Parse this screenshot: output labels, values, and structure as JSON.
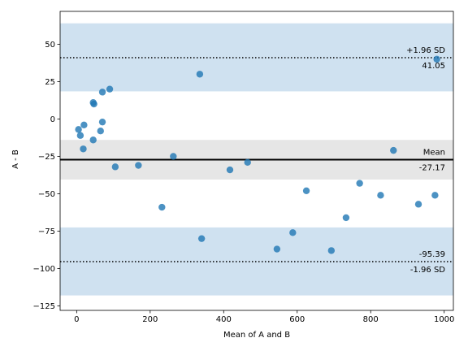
{
  "chart_data": {
    "type": "scatter",
    "title": "",
    "xlabel": "Mean of A and B",
    "ylabel": "A - B",
    "xlim": [
      -45,
      1025
    ],
    "ylim": [
      -128,
      72
    ],
    "xticks": [
      0,
      200,
      400,
      600,
      800,
      1000
    ],
    "yticks": [
      -125,
      -100,
      -75,
      -50,
      -25,
      0,
      25,
      50
    ],
    "grid": false,
    "colors": {
      "points": "#1f77b4",
      "band": "#cfe1f0",
      "band_mean": "#e6e6e6",
      "line": "#000000"
    },
    "bands": [
      {
        "name": "upper-ci-band",
        "y0": 18.5,
        "y1": 64,
        "color": "#cfe1f0"
      },
      {
        "name": "mean-ci-band",
        "y0": -40.5,
        "y1": -14,
        "color": "#e6e6e6"
      },
      {
        "name": "lower-ci-band",
        "y0": -118,
        "y1": -72.5,
        "color": "#cfe1f0"
      }
    ],
    "reference_lines": [
      {
        "name": "upper-loa-line",
        "y": 41.05,
        "style": "dotted",
        "label_top": "+1.96 SD",
        "label_bottom": "41.05"
      },
      {
        "name": "mean-line",
        "y": -27.17,
        "style": "solid",
        "label_top": "Mean",
        "label_bottom": "-27.17"
      },
      {
        "name": "lower-loa-line",
        "y": -95.39,
        "style": "dotted",
        "label_top": "-95.39",
        "label_bottom": "-1.96 SD"
      }
    ],
    "points": [
      {
        "x": 5,
        "y": -7
      },
      {
        "x": 10,
        "y": -11
      },
      {
        "x": 20,
        "y": -4
      },
      {
        "x": 18,
        "y": -20
      },
      {
        "x": 45,
        "y": 11
      },
      {
        "x": 47,
        "y": 10
      },
      {
        "x": 45,
        "y": -14
      },
      {
        "x": 65,
        "y": -8
      },
      {
        "x": 70,
        "y": -2
      },
      {
        "x": 70,
        "y": 18
      },
      {
        "x": 90,
        "y": 20
      },
      {
        "x": 105,
        "y": -32
      },
      {
        "x": 168,
        "y": -31
      },
      {
        "x": 232,
        "y": -59
      },
      {
        "x": 263,
        "y": -25
      },
      {
        "x": 335,
        "y": 30
      },
      {
        "x": 340,
        "y": -80
      },
      {
        "x": 417,
        "y": -34
      },
      {
        "x": 465,
        "y": -29
      },
      {
        "x": 545,
        "y": -87
      },
      {
        "x": 588,
        "y": -76
      },
      {
        "x": 625,
        "y": -48
      },
      {
        "x": 693,
        "y": -88
      },
      {
        "x": 733,
        "y": -66
      },
      {
        "x": 770,
        "y": -43
      },
      {
        "x": 827,
        "y": -51
      },
      {
        "x": 862,
        "y": -21
      },
      {
        "x": 930,
        "y": -57
      },
      {
        "x": 975,
        "y": -51
      },
      {
        "x": 980,
        "y": 40
      }
    ]
  }
}
